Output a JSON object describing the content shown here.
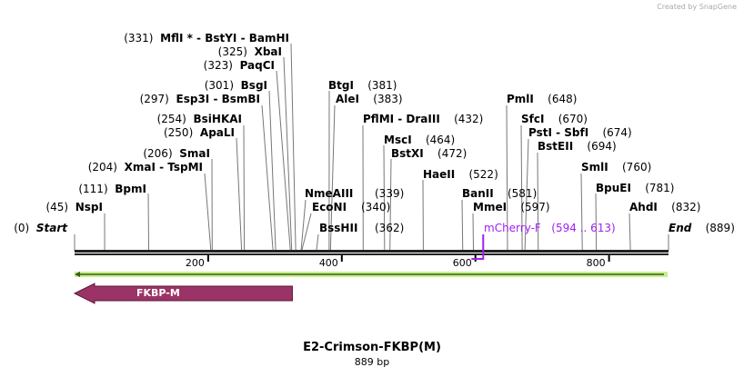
{
  "credit": "Created by SnapGene",
  "title": "E2-Crimson-FKBP(M)",
  "length": "889 bp",
  "total_bp": 889,
  "ticks": [
    "200",
    "400",
    "600",
    "800"
  ],
  "sites": [
    {
      "name": "Start",
      "pos": 0,
      "num": "(0)"
    },
    {
      "name": "NspI",
      "pos": 45,
      "num": "(45)"
    },
    {
      "name": "BpmI",
      "pos": 111,
      "num": "(111)"
    },
    {
      "name": "XmaI  - TspMI",
      "pos": 204,
      "num": "(204)"
    },
    {
      "name": "SmaI",
      "pos": 206,
      "num": "(206)"
    },
    {
      "name": "ApaLI",
      "pos": 250,
      "num": "(250)"
    },
    {
      "name": "BsiHKAI",
      "pos": 254,
      "num": "(254)"
    },
    {
      "name": "Esp3I  - BsmBI",
      "pos": 297,
      "num": "(297)"
    },
    {
      "name": "BsgI",
      "pos": 301,
      "num": "(301)"
    },
    {
      "name": "PaqCI",
      "pos": 323,
      "num": "(323)"
    },
    {
      "name": "XbaI",
      "pos": 325,
      "num": "(325)"
    },
    {
      "name": "MflI * - BstYI  - BamHI",
      "pos": 331,
      "num": "(331)"
    },
    {
      "name": "BtgI",
      "pos": 381,
      "num": "(381)"
    },
    {
      "name": "AleI",
      "pos": 383,
      "num": "(383)"
    },
    {
      "name": "PflMI  - DraIII",
      "pos": 432,
      "num": "(432)"
    },
    {
      "name": "MscI",
      "pos": 464,
      "num": "(464)"
    },
    {
      "name": "BstXI",
      "pos": 472,
      "num": "(472)"
    },
    {
      "name": "HaeII",
      "pos": 522,
      "num": "(522)"
    },
    {
      "name": "BanII",
      "pos": 581,
      "num": "(581)"
    },
    {
      "name": "MmeI",
      "pos": 597,
      "num": "(597)"
    },
    {
      "name": "PmlI",
      "pos": 648,
      "num": "(648)"
    },
    {
      "name": "SfcI",
      "pos": 670,
      "num": "(670)"
    },
    {
      "name": "PstI  - SbfI",
      "pos": 674,
      "num": "(674)"
    },
    {
      "name": "BstEII",
      "pos": 694,
      "num": "(694)"
    },
    {
      "name": "SmlI",
      "pos": 760,
      "num": "(760)"
    },
    {
      "name": "BpuEI",
      "pos": 781,
      "num": "(781)"
    },
    {
      "name": "AhdI",
      "pos": 832,
      "num": "(832)"
    },
    {
      "name": "End",
      "pos": 889,
      "num": "(889)"
    },
    {
      "name": "NmeAIII",
      "pos": 339,
      "num": "(339)"
    },
    {
      "name": "EcoNI",
      "pos": 340,
      "num": "(340)"
    },
    {
      "name": "BssHII",
      "pos": 362,
      "num": "(362)"
    }
  ],
  "primer": {
    "name": "mCherry-F",
    "range": "(594 .. 613)",
    "start": 594,
    "end": 613,
    "color": "#a020f0"
  },
  "feature": {
    "name": "FKBP-M",
    "start": 1,
    "end": 326,
    "direction": "reverse",
    "color": "#9b3366"
  },
  "colors": {
    "backbone": "#222222",
    "fragment": "#c6f08a"
  }
}
